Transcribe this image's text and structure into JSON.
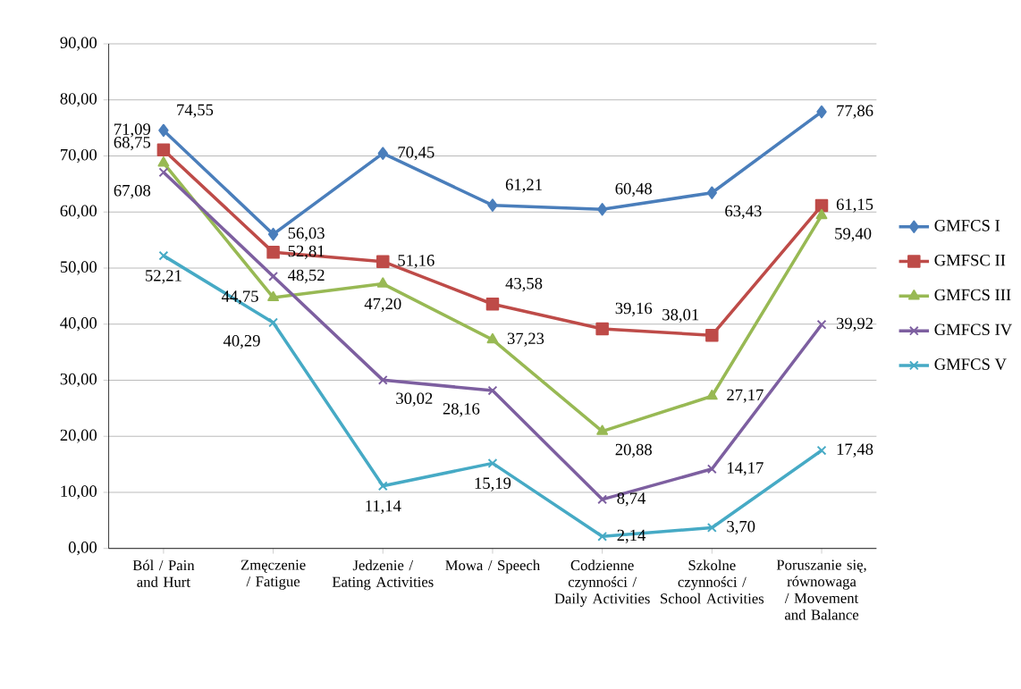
{
  "chart_data": {
    "type": "line",
    "categories": [
      "Ból / Pain and Hurt",
      "Zmęczenie / Fatigue",
      "Jedzenie / Eating Activities",
      "Mowa / Speech",
      "Codzienne czynności / Daily Activities",
      "Szkolne czynności / School Activities",
      "Poruszanie się, równowaga / Movement and Balance"
    ],
    "ylim": [
      0,
      90
    ],
    "yticks": [
      {
        "value": 0,
        "label": "0,00"
      },
      {
        "value": 10,
        "label": "10,00"
      },
      {
        "value": 20,
        "label": "20,00"
      },
      {
        "value": 30,
        "label": "30,00"
      },
      {
        "value": 40,
        "label": "40,00"
      },
      {
        "value": 50,
        "label": "50,00"
      },
      {
        "value": 60,
        "label": "60,00"
      },
      {
        "value": 70,
        "label": "70,00"
      },
      {
        "value": 80,
        "label": "80,00"
      },
      {
        "value": 90,
        "label": "90,00"
      }
    ],
    "grid": "y",
    "legend": "right",
    "line_style": "solid",
    "series": [
      {
        "name": "GMFCS I",
        "color": "#4a7ebb",
        "marker": "diamond",
        "values": [
          74.55,
          56.03,
          70.45,
          61.21,
          60.48,
          63.43,
          77.86
        ],
        "value_labels": [
          "74,55",
          "56,03",
          "70,45",
          "61,21",
          "60,48",
          "63,43",
          "77,86"
        ]
      },
      {
        "name": "GMFSC II",
        "color": "#be4b48",
        "marker": "square",
        "values": [
          71.09,
          52.81,
          51.16,
          43.58,
          39.16,
          38.01,
          61.15
        ],
        "value_labels": [
          "71,09",
          "52,81",
          "51,16",
          "43,58",
          "39,16",
          "38,01",
          "61,15"
        ]
      },
      {
        "name": "GMFCS III",
        "color": "#98b954",
        "marker": "triangle",
        "values": [
          68.75,
          44.75,
          47.2,
          37.23,
          20.88,
          27.17,
          59.4
        ],
        "value_labels": [
          "68,75",
          "44,75",
          "47,20",
          "37,23",
          "20,88",
          "27,17",
          "59,40"
        ]
      },
      {
        "name": "GMFCS IV",
        "color": "#7d5fa0",
        "marker": "cross",
        "values": [
          67.08,
          48.52,
          30.02,
          28.16,
          8.74,
          14.17,
          39.92
        ],
        "value_labels": [
          "67,08",
          "48,52",
          "30,02",
          "28,16",
          "8,74",
          "14,17",
          "39,92"
        ]
      },
      {
        "name": "GMFCS V",
        "color": "#46aac5",
        "marker": "cross",
        "values": [
          52.21,
          40.29,
          11.14,
          15.19,
          2.14,
          3.7,
          17.48
        ],
        "value_labels": [
          "52,21",
          "40,29",
          "11,14",
          "15,19",
          "2,14",
          "3,70",
          "17,48"
        ]
      }
    ]
  }
}
